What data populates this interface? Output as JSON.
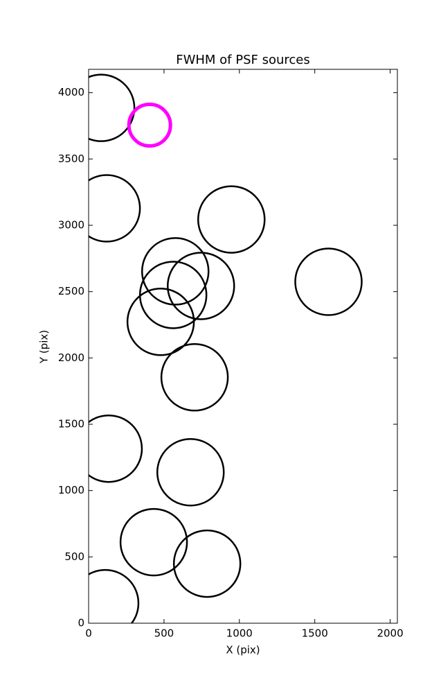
{
  "chart_data": {
    "type": "scatter",
    "title": "FWHM of PSF sources",
    "x_label": "X (pix)",
    "y_label": "Y (pix)",
    "xlim": [
      0,
      2048
    ],
    "ylim": [
      0,
      4176
    ],
    "xticks": [
      0,
      500,
      1000,
      1500,
      2000
    ],
    "yticks": [
      0,
      500,
      1000,
      1500,
      2000,
      2500,
      3000,
      3500,
      4000
    ],
    "grid": false,
    "series": [
      {
        "name": "sources",
        "color": "#000000",
        "marker": "circle",
        "marker_size": 48,
        "line_width": 2.5,
        "x": [
          83,
          120,
          947,
          575,
          745,
          561,
          1591,
          478,
          703,
          133,
          676,
          432,
          786,
          110
        ],
        "values": [
          3885,
          3128,
          3044,
          2653,
          2543,
          2475,
          2574,
          2272,
          1854,
          1316,
          1138,
          611,
          449,
          151
        ]
      },
      {
        "name": "selected",
        "color": "#ff00ff",
        "marker": "circle",
        "marker_size": 30,
        "line_width": 5,
        "x": [
          405
        ],
        "values": [
          3755
        ]
      }
    ]
  }
}
